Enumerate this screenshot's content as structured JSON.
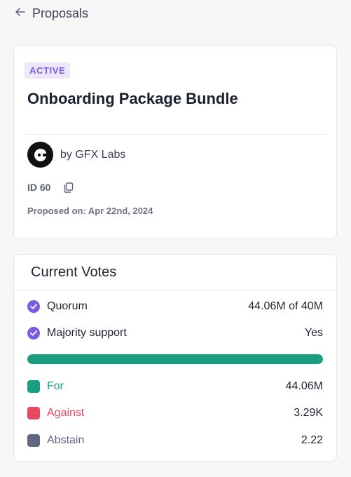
{
  "nav": {
    "back_label": "Proposals"
  },
  "proposal": {
    "status": "ACTIVE",
    "title": "Onboarding Package Bundle",
    "author_text": "by GFX Labs",
    "id_text": "ID 60",
    "proposed_text": "Proposed on: Apr 22nd, 2024"
  },
  "votes": {
    "title": "Current Votes",
    "quorum": {
      "label": "Quorum",
      "value": "44.06M of 40M"
    },
    "majority": {
      "label": "Majority support",
      "value": "Yes"
    },
    "progress_fraction": 1.0,
    "for": {
      "label": "For",
      "value": "44.06M",
      "color": "#1a9e80"
    },
    "against": {
      "label": "Against",
      "value": "3.29K",
      "color": "#e8485f"
    },
    "abstain": {
      "label": "Abstain",
      "value": "2.22",
      "color": "#5f6880"
    }
  },
  "colors": {
    "accent": "#7b5ce0",
    "progress": "#1a9e80"
  }
}
